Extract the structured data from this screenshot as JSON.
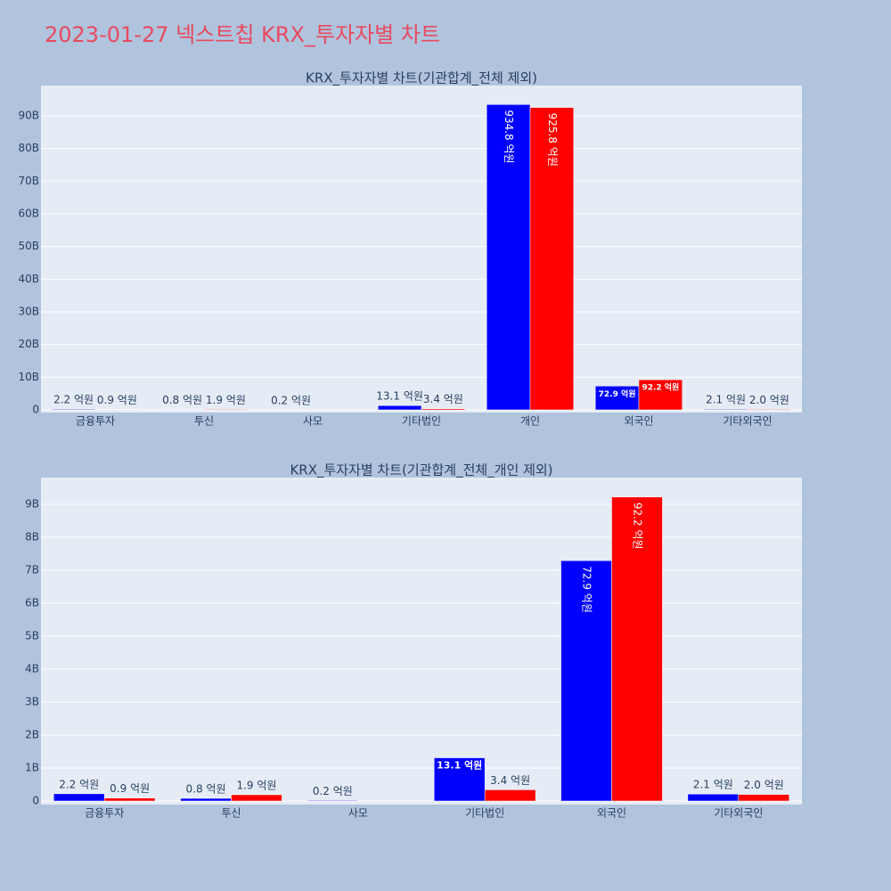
{
  "title": "2023-01-27 넥스트칩 KRX_투자자별 차트",
  "title_color": "#e84a5f",
  "chart_data": [
    {
      "type": "bar",
      "title": "KRX_투자자별 차트(기관합계_전체 제외)",
      "categories": [
        "금융투자",
        "투신",
        "사모",
        "기타법인",
        "개인",
        "외국인",
        "기타외국인"
      ],
      "series": [
        {
          "color": "#0000ff",
          "values": [
            220000000,
            80000000,
            20000000,
            1310000000,
            93480000000,
            7290000000,
            210000000
          ],
          "value_labels": [
            "2.2 억원",
            "0.8 억원",
            "0.2 억원",
            "13.1 억원",
            "934.8 억원",
            "72.9 억원",
            "2.1 억원"
          ]
        },
        {
          "color": "#ff0000",
          "values": [
            90000000,
            190000000,
            null,
            340000000,
            92580000000,
            9220000000,
            200000000
          ],
          "value_labels": [
            "0.9 억원",
            "1.9 억원",
            null,
            "3.4 억원",
            "925.8 억원",
            "92.2 억원",
            "2.0 억원"
          ]
        }
      ],
      "ylim": [
        -820000000,
        99300000000
      ],
      "yticks": [
        0,
        {
          "value": 10000000000,
          "label": "10B"
        },
        {
          "value": 20000000000,
          "label": "20B"
        },
        {
          "value": 30000000000,
          "label": "30B"
        },
        {
          "value": 40000000000,
          "label": "40B"
        },
        {
          "value": 50000000000,
          "label": "50B"
        },
        {
          "value": 60000000000,
          "label": "60B"
        },
        {
          "value": 70000000000,
          "label": "70B"
        },
        {
          "value": 80000000000,
          "label": "80B"
        },
        {
          "value": 90000000000,
          "label": "90B"
        }
      ],
      "grid": true
    },
    {
      "type": "bar",
      "title": "KRX_투자자별 차트(기관합계_전체_개인 제외)",
      "categories": [
        "금융투자",
        "투신",
        "사모",
        "기타법인",
        "외국인",
        "기타외국인"
      ],
      "series": [
        {
          "color": "#0000ff",
          "values": [
            220000000,
            80000000,
            20000000,
            1310000000,
            7290000000,
            210000000
          ],
          "value_labels": [
            "2.2 억원",
            "0.8 억원",
            "0.2 억원",
            "13.1 억원",
            "72.9 억원",
            "2.1 억원"
          ]
        },
        {
          "color": "#ff0000",
          "values": [
            90000000,
            190000000,
            null,
            340000000,
            9220000000,
            200000000
          ],
          "value_labels": [
            "0.9 억원",
            "1.9 억원",
            null,
            "3.4 억원",
            "92.2 억원",
            "2.0 억원"
          ]
        }
      ],
      "ylim": [
        -108000000,
        9810000000
      ],
      "yticks": [
        0,
        {
          "value": 1000000000,
          "label": "1B"
        },
        {
          "value": 2000000000,
          "label": "2B"
        },
        {
          "value": 3000000000,
          "label": "3B"
        },
        {
          "value": 4000000000,
          "label": "4B"
        },
        {
          "value": 5000000000,
          "label": "5B"
        },
        {
          "value": 6000000000,
          "label": "6B"
        },
        {
          "value": 7000000000,
          "label": "7B"
        },
        {
          "value": 8000000000,
          "label": "8B"
        },
        {
          "value": 9000000000,
          "label": "9B"
        }
      ],
      "grid": true
    }
  ]
}
